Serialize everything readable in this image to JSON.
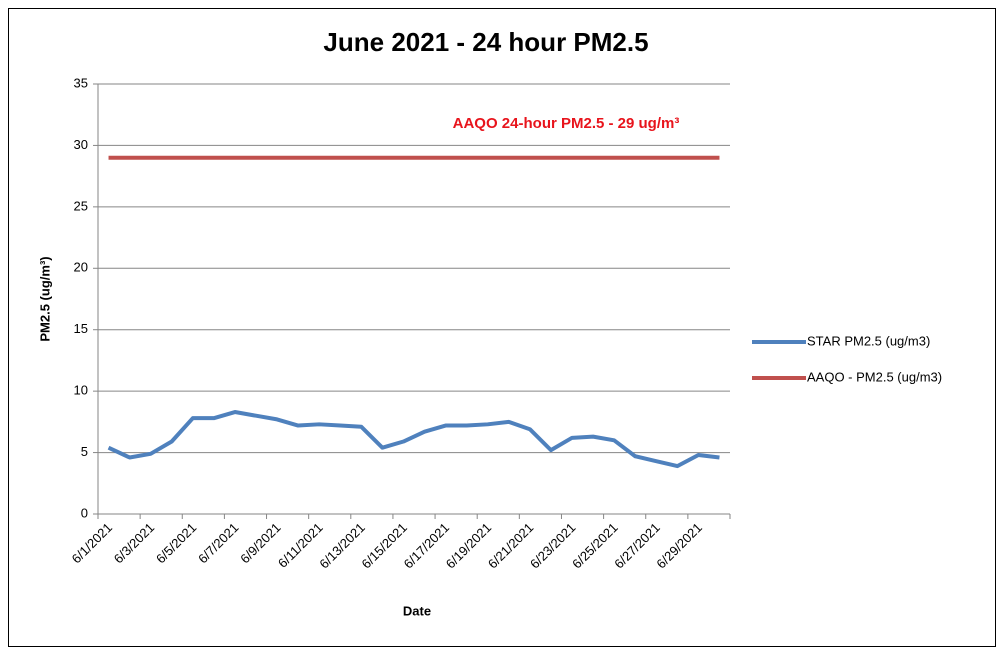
{
  "chart_data": {
    "type": "line",
    "title": "June 2021 - 24 hour PM2.5",
    "annotation": "AAQO 24-hour PM2.5 - 29 ug/m³",
    "x_label": "Date",
    "y_label": "PM2.5 (ug/m³)",
    "categories": [
      "6/1/2021",
      null,
      "6/3/2021",
      null,
      "6/5/2021",
      null,
      "6/7/2021",
      null,
      "6/9/2021",
      null,
      "6/11/2021",
      null,
      "6/13/2021",
      null,
      "6/15/2021",
      null,
      "6/17/2021",
      null,
      "6/19/2021",
      null,
      "6/21/2021",
      null,
      "6/23/2021",
      null,
      "6/25/2021",
      null,
      "6/27/2021",
      null,
      "6/29/2021",
      null
    ],
    "series": [
      {
        "name": "STAR PM2.5 (ug/m3)",
        "color": "#4f81bd",
        "values": [
          5.4,
          4.6,
          4.9,
          5.9,
          7.8,
          7.8,
          8.3,
          8.0,
          7.7,
          7.2,
          7.3,
          7.2,
          7.1,
          5.4,
          5.9,
          6.7,
          7.2,
          7.2,
          7.3,
          7.5,
          6.9,
          5.2,
          6.2,
          6.3,
          6.0,
          4.7,
          4.3,
          3.9,
          4.8,
          4.6
        ]
      },
      {
        "name": "AAQO - PM2.5 (ug/m3)",
        "color": "#c0504d",
        "values": [
          29,
          29,
          29,
          29,
          29,
          29,
          29,
          29,
          29,
          29,
          29,
          29,
          29,
          29,
          29,
          29,
          29,
          29,
          29,
          29,
          29,
          29,
          29,
          29,
          29,
          29,
          29,
          29,
          29,
          29
        ]
      }
    ],
    "ylim": [
      0,
      35
    ],
    "yticks": [
      0,
      5,
      10,
      15,
      20,
      25,
      30,
      35
    ],
    "grid": true,
    "legend": "right"
  }
}
